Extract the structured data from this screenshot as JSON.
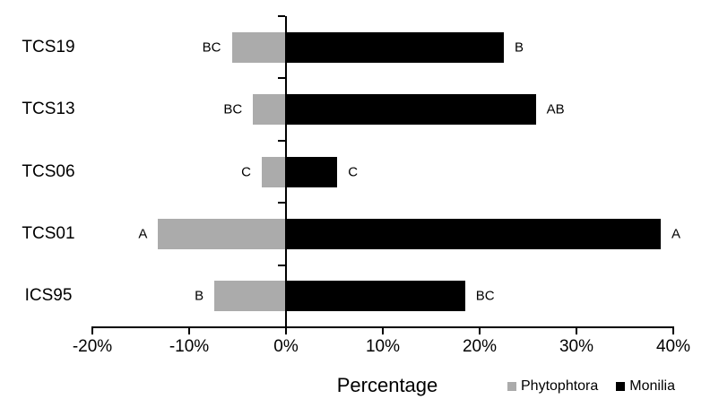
{
  "chart_data": {
    "type": "bar",
    "orientation": "horizontal",
    "title": "",
    "xlabel": "Percentage",
    "ylabel": "",
    "categories": [
      "TCS19",
      "TCS13",
      "TCS06",
      "TCS01",
      "ICS95"
    ],
    "series": [
      {
        "name": "Phytophtora",
        "color": "#ABABAB",
        "values": [
          -5.6,
          -3.4,
          -2.5,
          -13.2,
          -7.4
        ],
        "sig_labels": [
          "BC",
          "BC",
          "C",
          "A",
          "B"
        ]
      },
      {
        "name": "Monilia",
        "color": "#000000",
        "values": [
          22.5,
          25.8,
          5.3,
          38.7,
          18.5
        ],
        "sig_labels": [
          "B",
          "AB",
          "C",
          "A",
          "BC"
        ]
      }
    ],
    "xlim": [
      -20,
      40
    ],
    "x_ticks": [
      {
        "value": -20,
        "label": "-20%"
      },
      {
        "value": -10,
        "label": "-10%"
      },
      {
        "value": 0,
        "label": "0%"
      },
      {
        "value": 10,
        "label": "10%"
      },
      {
        "value": 20,
        "label": "20%"
      },
      {
        "value": 30,
        "label": "30%"
      },
      {
        "value": 40,
        "label": "40%"
      }
    ],
    "grid": false,
    "legend_position": "bottom-right",
    "axis_color": "#000000",
    "text_color": "#000000",
    "background": "#FFFFFF"
  }
}
